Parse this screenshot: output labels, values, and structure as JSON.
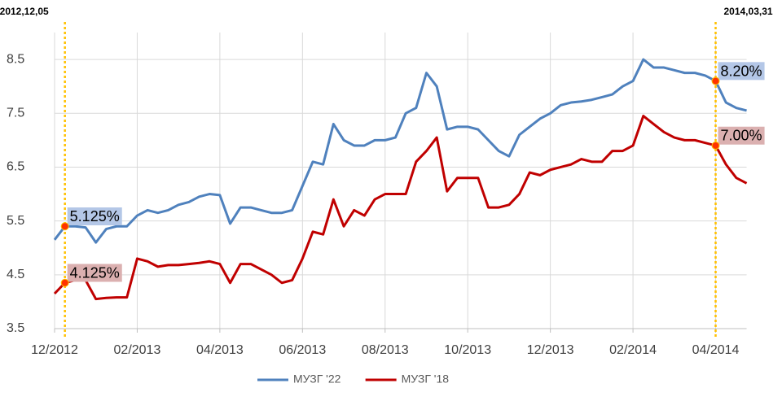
{
  "chart_data": {
    "type": "line",
    "categories": [
      "12/2012",
      null,
      null,
      null,
      null,
      null,
      null,
      null,
      "02/2013",
      null,
      null,
      null,
      null,
      null,
      null,
      null,
      "04/2013",
      null,
      null,
      null,
      null,
      null,
      null,
      null,
      "06/2013",
      null,
      null,
      null,
      null,
      null,
      null,
      null,
      "08/2013",
      null,
      null,
      null,
      null,
      null,
      null,
      null,
      "10/2013",
      null,
      null,
      null,
      null,
      null,
      null,
      null,
      "12/2013",
      null,
      null,
      null,
      null,
      null,
      null,
      null,
      "02/2014",
      null,
      null,
      null,
      null,
      null,
      null,
      null,
      "04/2014",
      null,
      null,
      null
    ],
    "series": [
      {
        "name": "МУЗГ '22",
        "color": "#4f81bd",
        "values": [
          5.15,
          5.4,
          5.4,
          5.38,
          5.1,
          5.35,
          5.4,
          5.4,
          5.6,
          5.7,
          5.65,
          5.7,
          5.8,
          5.85,
          5.95,
          6.0,
          5.98,
          5.45,
          5.75,
          5.75,
          5.7,
          5.65,
          5.65,
          5.7,
          6.15,
          6.6,
          6.55,
          7.3,
          7.0,
          6.9,
          6.9,
          7.0,
          7.0,
          7.05,
          7.5,
          7.6,
          8.25,
          8.0,
          7.2,
          7.25,
          7.25,
          7.2,
          7.0,
          6.8,
          6.7,
          7.1,
          7.25,
          7.4,
          7.5,
          7.65,
          7.7,
          7.72,
          7.75,
          7.8,
          7.85,
          8.0,
          8.1,
          8.5,
          8.35,
          8.35,
          8.3,
          8.25,
          8.25,
          8.2,
          8.1,
          7.7,
          7.6,
          7.55
        ]
      },
      {
        "name": "МУЗГ '18",
        "color": "#c00000",
        "values": [
          4.15,
          4.35,
          4.4,
          4.4,
          4.05,
          4.07,
          4.08,
          4.08,
          4.8,
          4.75,
          4.65,
          4.68,
          4.68,
          4.7,
          4.72,
          4.75,
          4.7,
          4.35,
          4.7,
          4.7,
          4.6,
          4.5,
          4.35,
          4.4,
          4.8,
          5.3,
          5.25,
          5.9,
          5.4,
          5.7,
          5.6,
          5.9,
          6.0,
          6.0,
          6.0,
          6.6,
          6.8,
          7.05,
          6.05,
          6.3,
          6.3,
          6.3,
          5.75,
          5.75,
          5.8,
          6.0,
          6.4,
          6.35,
          6.45,
          6.5,
          6.55,
          6.65,
          6.6,
          6.6,
          6.8,
          6.8,
          6.9,
          7.45,
          7.3,
          7.15,
          7.05,
          7.0,
          7.0,
          6.95,
          6.9,
          6.55,
          6.3,
          6.2
        ]
      }
    ],
    "annotations": [
      {
        "date": "2012,12,05",
        "labels": [
          "5.125%",
          "4.125%"
        ]
      },
      {
        "date": "2014,03,31",
        "labels": [
          "8.20%",
          "7.00%"
        ]
      }
    ],
    "ylim": [
      3.5,
      9
    ],
    "yticks": [
      3.5,
      4.5,
      5.5,
      6.5,
      7.5,
      8.5
    ],
    "grid": true,
    "legend": "bottom"
  }
}
